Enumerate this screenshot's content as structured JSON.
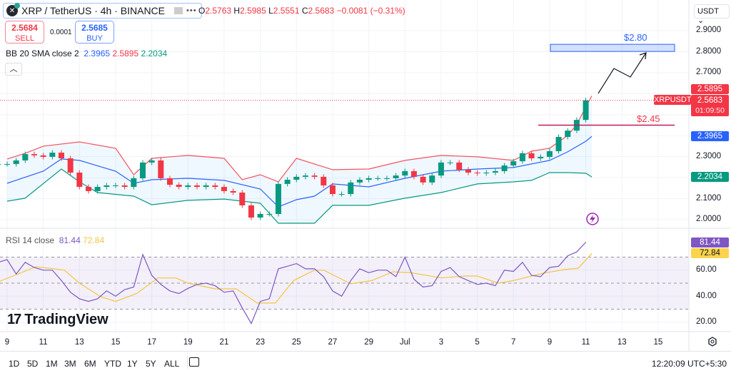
{
  "header": {
    "symbol": "XRP / TetherUS · 4h · BINANCE",
    "logo_letter": "✕",
    "more": "•••",
    "ohlc": {
      "o_label": "O",
      "o": "2.5763",
      "h_label": "H",
      "h": "2.5985",
      "l_label": "L",
      "l": "2.5551",
      "c_label": "C",
      "c": "2.5683",
      "change": "−0.0081 (−0.31%)"
    }
  },
  "trade": {
    "sell_price": "2.5684",
    "sell_label": "SELL",
    "spread": "0.0001",
    "buy_price": "2.5685",
    "buy_label": "BUY"
  },
  "bb": {
    "label": "BB 20 SMA close 2",
    "basis": "2.3965",
    "upper": "2.5895",
    "lower": "2.2034"
  },
  "rsi": {
    "label": "RSI 14 close",
    "value": "81.44",
    "ma": "72.84"
  },
  "brand": "TradingView",
  "currency": "USDT",
  "price_axis": [
    "2.9000",
    "2.8000",
    "2.7000",
    "2.3000",
    "2.1000",
    "2.0000"
  ],
  "badges": {
    "upper": "2.5895",
    "symbol": "XRPUSDT",
    "last": "2.5683",
    "countdown": "01:09:50",
    "basis": "2.3965",
    "lower": "2.2034",
    "rsi": "81.44",
    "rsi_ma": "72.84"
  },
  "rsi_axis": [
    "60.00",
    "40.00",
    "20.00"
  ],
  "x_ticks": [
    "9",
    "11",
    "13",
    "15",
    "17",
    "19",
    "21",
    "23",
    "25",
    "27",
    "29",
    "Jul",
    "3",
    "5",
    "7",
    "9",
    "11",
    "13",
    "15"
  ],
  "annotations": {
    "target_label": "$2.80",
    "target_price": 2.8,
    "support_label": "$2.45",
    "support_price": 2.45
  },
  "ranges": [
    "1D",
    "5D",
    "1M",
    "3M",
    "6M",
    "YTD",
    "1Y",
    "5Y",
    "ALL"
  ],
  "clock": "12:20:09 UTC+5:30",
  "colors": {
    "up": "#089981",
    "down": "#f23645",
    "bb_upper": "#f7525f",
    "bb_basis": "#2962ff",
    "bb_lower": "#089981",
    "rsi": "#7e57c2",
    "rsi_ma": "#f5c542"
  },
  "chart_data": {
    "type": "candlestick",
    "price_range": [
      2.0,
      2.9
    ],
    "rsi_range": [
      20,
      80
    ],
    "rsi_levels": [
      70,
      50,
      30
    ],
    "last_price": 2.5683,
    "candles_close": [
      [
        "06-08 12:00",
        2.265
      ],
      [
        "06-09 00:00",
        2.265
      ],
      [
        "06-09 12:00",
        2.282
      ],
      [
        "06-10 00:00",
        2.312
      ],
      [
        "06-10 12:00",
        2.306
      ],
      [
        "06-11 00:00",
        2.299
      ],
      [
        "06-11 12:00",
        2.319
      ],
      [
        "06-12 00:00",
        2.292
      ],
      [
        "06-12 12:00",
        2.224
      ],
      [
        "06-13 00:00",
        2.156
      ],
      [
        "06-13 12:00",
        2.136
      ],
      [
        "06-14 00:00",
        2.156
      ],
      [
        "06-14 12:00",
        2.163
      ],
      [
        "06-15 00:00",
        2.163
      ],
      [
        "06-15 12:00",
        2.156
      ],
      [
        "06-16 00:00",
        2.197
      ],
      [
        "06-16 12:00",
        2.272
      ],
      [
        "06-17 00:00",
        2.282
      ],
      [
        "06-17 12:00",
        2.197
      ],
      [
        "06-18 00:00",
        2.166
      ],
      [
        "06-18 12:00",
        2.156
      ],
      [
        "06-19 00:00",
        2.163
      ],
      [
        "06-19 12:00",
        2.156
      ],
      [
        "06-20 00:00",
        2.163
      ],
      [
        "06-20 12:00",
        2.156
      ],
      [
        "06-21 00:00",
        2.136
      ],
      [
        "06-21 12:00",
        2.129
      ],
      [
        "06-22 00:00",
        2.068
      ],
      [
        "06-22 12:00",
        2.01
      ],
      [
        "06-23 00:00",
        2.027
      ],
      [
        "06-23 12:00",
        2.027
      ],
      [
        "06-24 00:00",
        2.17
      ],
      [
        "06-24 12:00",
        2.19
      ],
      [
        "06-25 00:00",
        2.204
      ],
      [
        "06-25 12:00",
        2.21
      ],
      [
        "06-26 00:00",
        2.204
      ],
      [
        "06-26 12:00",
        2.163
      ],
      [
        "06-27 00:00",
        2.122
      ],
      [
        "06-27 12:00",
        2.122
      ],
      [
        "06-28 00:00",
        2.177
      ],
      [
        "06-28 12:00",
        2.19
      ],
      [
        "06-29 00:00",
        2.197
      ],
      [
        "06-29 12:00",
        2.197
      ],
      [
        "06-30 00:00",
        2.197
      ],
      [
        "06-30 12:00",
        2.21
      ],
      [
        "07-01 00:00",
        2.231
      ],
      [
        "07-01 12:00",
        2.204
      ],
      [
        "07-02 00:00",
        2.177
      ],
      [
        "07-02 12:00",
        2.21
      ],
      [
        "07-03 00:00",
        2.272
      ],
      [
        "07-03 12:00",
        2.272
      ],
      [
        "07-04 00:00",
        2.238
      ],
      [
        "07-04 12:00",
        2.224
      ],
      [
        "07-05 00:00",
        2.221
      ],
      [
        "07-05 12:00",
        2.224
      ],
      [
        "07-06 00:00",
        2.231
      ],
      [
        "07-06 12:00",
        2.258
      ],
      [
        "07-07 00:00",
        2.278
      ],
      [
        "07-07 12:00",
        2.316
      ],
      [
        "07-08 00:00",
        2.292
      ],
      [
        "07-08 12:00",
        2.299
      ],
      [
        "07-09 00:00",
        2.326
      ],
      [
        "07-09 12:00",
        2.394
      ],
      [
        "07-10 00:00",
        2.424
      ],
      [
        "07-10 12:00",
        2.475
      ],
      [
        "07-11 00:00",
        2.568
      ]
    ],
    "bb_upper": [
      [
        "06-09 00:00",
        2.289
      ],
      [
        "06-10 00:00",
        2.316
      ],
      [
        "06-11 00:00",
        2.35
      ],
      [
        "06-13 00:00",
        2.37
      ],
      [
        "06-15 00:00",
        2.34
      ],
      [
        "06-16 00:00",
        2.214
      ],
      [
        "06-17 00:00",
        2.292
      ],
      [
        "06-19 00:00",
        2.306
      ],
      [
        "06-21 00:00",
        2.292
      ],
      [
        "06-22 00:00",
        2.19
      ],
      [
        "06-23 00:00",
        2.214
      ],
      [
        "06-24 00:00",
        2.18
      ],
      [
        "06-25 00:00",
        2.292
      ],
      [
        "06-27 00:00",
        2.238
      ],
      [
        "06-29 00:00",
        2.241
      ],
      [
        "07-01 00:00",
        2.282
      ],
      [
        "07-03 00:00",
        2.306
      ],
      [
        "07-05 00:00",
        2.299
      ],
      [
        "07-07 00:00",
        2.282
      ],
      [
        "07-08 00:00",
        2.326
      ],
      [
        "07-09 00:00",
        2.34
      ],
      [
        "07-10 00:00",
        2.401
      ],
      [
        "07-10 12:00",
        2.452
      ],
      [
        "07-11 00:00",
        2.537
      ],
      [
        "07-11 08:00",
        2.5895
      ]
    ],
    "bb_basis": [
      [
        "06-09 00:00",
        2.173
      ],
      [
        "06-11 00:00",
        2.231
      ],
      [
        "06-12 00:00",
        2.289
      ],
      [
        "06-13 00:00",
        2.282
      ],
      [
        "06-15 00:00",
        2.231
      ],
      [
        "06-16 00:00",
        2.173
      ],
      [
        "06-17 00:00",
        2.19
      ],
      [
        "06-19 00:00",
        2.197
      ],
      [
        "06-21 00:00",
        2.187
      ],
      [
        "06-23 00:00",
        2.146
      ],
      [
        "06-24 00:00",
        2.061
      ],
      [
        "06-25 00:00",
        2.095
      ],
      [
        "06-26 00:00",
        2.112
      ],
      [
        "06-27 00:00",
        2.17
      ],
      [
        "06-29 00:00",
        2.156
      ],
      [
        "07-01 00:00",
        2.197
      ],
      [
        "07-03 00:00",
        2.231
      ],
      [
        "07-05 00:00",
        2.241
      ],
      [
        "07-07 00:00",
        2.248
      ],
      [
        "07-09 00:00",
        2.282
      ],
      [
        "07-10 00:00",
        2.323
      ],
      [
        "07-11 00:00",
        2.373
      ],
      [
        "07-11 08:00",
        2.3965
      ]
    ],
    "bb_lower": [
      [
        "06-09 00:00",
        2.088
      ],
      [
        "06-10 00:00",
        2.102
      ],
      [
        "06-12 00:00",
        2.241
      ],
      [
        "06-13 00:00",
        2.18
      ],
      [
        "06-14 00:00",
        2.129
      ],
      [
        "06-16 00:00",
        2.112
      ],
      [
        "06-17 00:00",
        2.071
      ],
      [
        "06-19 00:00",
        2.092
      ],
      [
        "06-21 00:00",
        2.098
      ],
      [
        "06-23 00:00",
        2.078
      ],
      [
        "06-24 00:00",
        1.983
      ],
      [
        "06-26 00:00",
        1.983
      ],
      [
        "06-27 00:00",
        2.068
      ],
      [
        "06-29 00:00",
        2.068
      ],
      [
        "07-01 00:00",
        2.102
      ],
      [
        "07-03 00:00",
        2.129
      ],
      [
        "07-05 00:00",
        2.17
      ],
      [
        "07-07 00:00",
        2.18
      ],
      [
        "07-08 00:00",
        2.187
      ],
      [
        "07-09 00:00",
        2.224
      ],
      [
        "07-10 00:00",
        2.224
      ],
      [
        "07-11 00:00",
        2.221
      ],
      [
        "07-11 08:00",
        2.2034
      ]
    ],
    "rsi_values": [
      66,
      68,
      57,
      66,
      62,
      60,
      60,
      52,
      43,
      38,
      36,
      38,
      44,
      40,
      45,
      47,
      72,
      56,
      49,
      44,
      42,
      46,
      49,
      50,
      48,
      43,
      44,
      31,
      19,
      36,
      38,
      61,
      63,
      65,
      61,
      61,
      55,
      44,
      40,
      52,
      61,
      58,
      60,
      60,
      55,
      70,
      53,
      47,
      48,
      59,
      62,
      55,
      52,
      49,
      50,
      48,
      60,
      59,
      66,
      56,
      55,
      62,
      63,
      71,
      74,
      81.44
    ],
    "rsi_ma": [
      [
        "06-08 12:00",
        51
      ],
      [
        "06-09 08:00",
        55.5
      ],
      [
        "06-10 14:00",
        62.6
      ],
      [
        "06-11 14:00",
        61
      ],
      [
        "06-12 04:00",
        60
      ],
      [
        "06-13 00:00",
        50
      ],
      [
        "06-14 04:00",
        39.6
      ],
      [
        "06-15 00:00",
        36
      ],
      [
        "06-16 04:00",
        42
      ],
      [
        "06-17 08:00",
        54
      ],
      [
        "06-18 08:00",
        54
      ],
      [
        "06-19 00:00",
        50
      ],
      [
        "06-20 12:00",
        45.6
      ],
      [
        "06-21 16:00",
        45.6
      ],
      [
        "06-22 20:00",
        34.7
      ],
      [
        "06-23 20:00",
        34.7
      ],
      [
        "06-24 20:00",
        52
      ],
      [
        "06-26 00:00",
        60
      ],
      [
        "06-26 12:00",
        60
      ],
      [
        "06-28 00:00",
        49.5
      ],
      [
        "06-29 04:00",
        52
      ],
      [
        "06-30 08:00",
        58.7
      ],
      [
        "07-01 08:00",
        58
      ],
      [
        "07-03 00:00",
        54
      ],
      [
        "07-04 08:00",
        55.5
      ],
      [
        "07-05 00:00",
        55.5
      ],
      [
        "07-06 04:00",
        50
      ],
      [
        "07-07 00:00",
        52
      ],
      [
        "07-08 16:00",
        57.7
      ],
      [
        "07-09 20:00",
        60.4
      ],
      [
        "07-10 14:00",
        61.5
      ],
      [
        "07-11 08:00",
        72.84
      ]
    ]
  }
}
